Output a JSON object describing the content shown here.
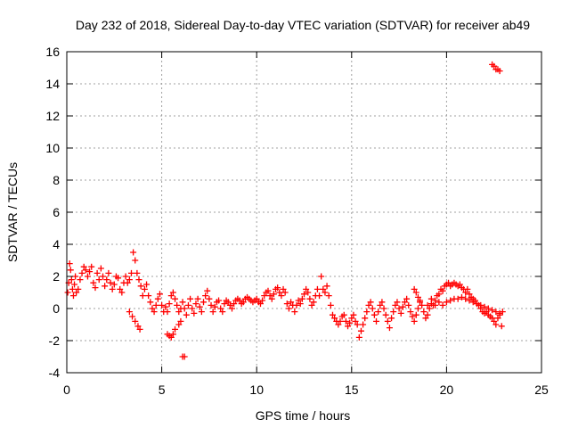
{
  "chart_data": {
    "type": "scatter",
    "title": "Day 232 of 2018, Sidereal Day-to-day VTEC variation (SDTVAR) for receiver ab49",
    "xlabel": "GPS time / hours",
    "ylabel": "SDTVAR / TECUs",
    "xlim": [
      0,
      25
    ],
    "ylim": [
      -4,
      16
    ],
    "xticks": [
      "0",
      "5",
      "10",
      "15",
      "20",
      "25"
    ],
    "yticks": [
      "-4",
      "-2",
      "0",
      "2",
      "4",
      "6",
      "8",
      "10",
      "12",
      "14",
      "16"
    ],
    "grid": true,
    "marker": "+",
    "color": "#ff0000",
    "series": [
      {
        "name": "SDTVAR",
        "points": [
          [
            0.05,
            1.0
          ],
          [
            0.1,
            1.6
          ],
          [
            0.15,
            2.8
          ],
          [
            0.2,
            2.4
          ],
          [
            0.25,
            1.8
          ],
          [
            0.3,
            1.2
          ],
          [
            0.35,
            0.8
          ],
          [
            0.4,
            1.5
          ],
          [
            0.45,
            2.0
          ],
          [
            0.5,
            1.0
          ],
          [
            0.6,
            1.2
          ],
          [
            0.7,
            1.8
          ],
          [
            0.8,
            2.2
          ],
          [
            0.9,
            2.6
          ],
          [
            1.0,
            2.4
          ],
          [
            1.1,
            2.0
          ],
          [
            1.2,
            2.3
          ],
          [
            1.3,
            2.6
          ],
          [
            1.4,
            1.6
          ],
          [
            1.5,
            1.3
          ],
          [
            1.6,
            2.2
          ],
          [
            1.7,
            1.8
          ],
          [
            1.8,
            2.5
          ],
          [
            1.9,
            2.0
          ],
          [
            2.0,
            1.4
          ],
          [
            2.1,
            1.8
          ],
          [
            2.2,
            2.2
          ],
          [
            2.3,
            1.6
          ],
          [
            2.4,
            1.2
          ],
          [
            2.5,
            1.5
          ],
          [
            2.6,
            2.0
          ],
          [
            2.7,
            1.9
          ],
          [
            2.8,
            1.2
          ],
          [
            2.9,
            1.0
          ],
          [
            3.0,
            1.6
          ],
          [
            3.1,
            2.0
          ],
          [
            3.2,
            1.6
          ],
          [
            3.3,
            1.8
          ],
          [
            3.4,
            2.2
          ],
          [
            3.5,
            3.5
          ],
          [
            3.6,
            3.0
          ],
          [
            3.7,
            2.2
          ],
          [
            3.8,
            1.8
          ],
          [
            3.9,
            1.4
          ],
          [
            4.0,
            0.8
          ],
          [
            4.1,
            1.2
          ],
          [
            4.2,
            1.5
          ],
          [
            4.3,
            0.8
          ],
          [
            4.4,
            0.4
          ],
          [
            4.5,
            0.0
          ],
          [
            4.6,
            -0.2
          ],
          [
            4.7,
            0.2
          ],
          [
            4.8,
            0.6
          ],
          [
            4.9,
            0.9
          ],
          [
            5.0,
            0.2
          ],
          [
            5.1,
            -0.2
          ],
          [
            3.3,
            -0.2
          ],
          [
            3.45,
            -0.5
          ],
          [
            3.6,
            -0.8
          ],
          [
            3.75,
            -1.1
          ],
          [
            3.85,
            -1.3
          ],
          [
            5.2,
            0.1
          ],
          [
            5.3,
            -0.2
          ],
          [
            5.4,
            0.3
          ],
          [
            5.5,
            0.8
          ],
          [
            5.6,
            1.0
          ],
          [
            5.7,
            0.6
          ],
          [
            5.8,
            0.2
          ],
          [
            5.9,
            -0.2
          ],
          [
            6.0,
            0.0
          ],
          [
            6.1,
            0.4
          ],
          [
            6.2,
            0.0
          ],
          [
            6.3,
            -0.4
          ],
          [
            6.4,
            0.2
          ],
          [
            6.5,
            0.6
          ],
          [
            6.6,
            0.0
          ],
          [
            6.7,
            -0.3
          ],
          [
            6.8,
            0.3
          ],
          [
            6.9,
            0.6
          ],
          [
            7.0,
            0.1
          ],
          [
            7.1,
            -0.2
          ],
          [
            7.2,
            0.4
          ],
          [
            7.3,
            0.8
          ],
          [
            7.4,
            1.1
          ],
          [
            7.5,
            0.6
          ],
          [
            7.6,
            0.2
          ],
          [
            7.7,
            -0.2
          ],
          [
            7.8,
            0.1
          ],
          [
            7.9,
            0.4
          ],
          [
            8.0,
            0.5
          ],
          [
            8.1,
            0.0
          ],
          [
            8.2,
            -0.2
          ],
          [
            8.3,
            0.3
          ],
          [
            8.4,
            0.5
          ],
          [
            8.5,
            0.4
          ],
          [
            8.6,
            0.2
          ],
          [
            8.7,
            0.0
          ],
          [
            8.8,
            0.3
          ],
          [
            8.9,
            0.5
          ],
          [
            9.0,
            0.6
          ],
          [
            9.1,
            0.5
          ],
          [
            9.2,
            0.3
          ],
          [
            9.3,
            0.4
          ],
          [
            9.4,
            0.6
          ],
          [
            9.5,
            0.7
          ],
          [
            9.6,
            0.6
          ],
          [
            9.7,
            0.5
          ],
          [
            9.8,
            0.4
          ],
          [
            9.9,
            0.5
          ],
          [
            10.0,
            0.6
          ],
          [
            10.1,
            0.4
          ],
          [
            10.2,
            0.3
          ],
          [
            10.3,
            0.5
          ],
          [
            10.4,
            0.8
          ],
          [
            10.5,
            1.0
          ],
          [
            10.6,
            1.1
          ],
          [
            10.7,
            0.8
          ],
          [
            10.8,
            0.6
          ],
          [
            10.9,
            0.9
          ],
          [
            11.0,
            1.2
          ],
          [
            11.1,
            1.3
          ],
          [
            11.2,
            1.0
          ],
          [
            11.3,
            0.8
          ],
          [
            11.4,
            1.2
          ],
          [
            11.5,
            1.0
          ],
          [
            11.6,
            0.3
          ],
          [
            11.7,
            0.0
          ],
          [
            11.8,
            0.4
          ],
          [
            11.9,
            0.2
          ],
          [
            12.0,
            -0.2
          ],
          [
            12.1,
            0.2
          ],
          [
            12.2,
            0.5
          ],
          [
            12.3,
            0.3
          ],
          [
            12.4,
            0.6
          ],
          [
            12.5,
            0.9
          ],
          [
            12.6,
            1.2
          ],
          [
            12.7,
            1.0
          ],
          [
            12.8,
            0.6
          ],
          [
            12.9,
            0.2
          ],
          [
            13.0,
            0.4
          ],
          [
            13.1,
            0.8
          ],
          [
            13.2,
            1.2
          ],
          [
            13.3,
            0.8
          ],
          [
            13.4,
            2.0
          ],
          [
            13.5,
            1.2
          ],
          [
            13.6,
            1.0
          ],
          [
            13.7,
            1.4
          ],
          [
            13.8,
            0.8
          ],
          [
            13.9,
            0.2
          ],
          [
            14.0,
            -0.4
          ],
          [
            14.1,
            -0.6
          ],
          [
            14.2,
            -0.8
          ],
          [
            14.3,
            -1.0
          ],
          [
            14.4,
            -0.8
          ],
          [
            14.5,
            -0.5
          ],
          [
            14.6,
            -0.4
          ],
          [
            14.7,
            -0.8
          ],
          [
            14.8,
            -1.1
          ],
          [
            14.9,
            -0.9
          ],
          [
            15.0,
            -0.6
          ],
          [
            15.1,
            -0.4
          ],
          [
            15.2,
            -0.8
          ],
          [
            15.3,
            -1.0
          ],
          [
            15.4,
            -1.8
          ],
          [
            15.5,
            -1.4
          ],
          [
            15.6,
            -1.0
          ],
          [
            15.7,
            -0.6
          ],
          [
            15.8,
            -0.2
          ],
          [
            15.9,
            0.2
          ],
          [
            16.0,
            0.4
          ],
          [
            16.1,
            0.0
          ],
          [
            16.2,
            -0.4
          ],
          [
            16.3,
            -0.8
          ],
          [
            16.4,
            -0.2
          ],
          [
            16.5,
            0.2
          ],
          [
            16.6,
            0.4
          ],
          [
            16.7,
            0.0
          ],
          [
            16.8,
            -0.4
          ],
          [
            16.9,
            -0.8
          ],
          [
            17.0,
            -1.2
          ],
          [
            17.1,
            -0.6
          ],
          [
            17.2,
            -0.2
          ],
          [
            17.3,
            0.2
          ],
          [
            17.4,
            0.4
          ],
          [
            17.5,
            0.0
          ],
          [
            17.6,
            -0.3
          ],
          [
            17.7,
            0.1
          ],
          [
            17.8,
            0.4
          ],
          [
            17.9,
            0.6
          ],
          [
            18.0,
            0.2
          ],
          [
            18.1,
            -0.2
          ],
          [
            18.2,
            -0.5
          ],
          [
            18.3,
            -0.8
          ],
          [
            18.4,
            -0.4
          ],
          [
            18.5,
            0.0
          ],
          [
            18.6,
            0.4
          ],
          [
            18.7,
            0.2
          ],
          [
            18.8,
            -0.2
          ],
          [
            18.9,
            -0.6
          ],
          [
            19.0,
            -0.4
          ],
          [
            19.1,
            0.0
          ],
          [
            19.2,
            0.3
          ],
          [
            19.3,
            0.2
          ],
          [
            19.4,
            0.5
          ],
          [
            19.5,
            0.8
          ],
          [
            19.6,
            0.9
          ],
          [
            19.7,
            1.2
          ],
          [
            19.8,
            1.1
          ],
          [
            19.9,
            1.4
          ],
          [
            20.0,
            1.5
          ],
          [
            20.1,
            1.6
          ],
          [
            20.2,
            1.4
          ],
          [
            20.3,
            1.5
          ],
          [
            20.4,
            1.6
          ],
          [
            20.5,
            1.5
          ],
          [
            20.6,
            1.4
          ],
          [
            20.7,
            1.5
          ],
          [
            20.8,
            1.3
          ],
          [
            20.9,
            1.2
          ],
          [
            21.0,
            1.0
          ],
          [
            21.1,
            1.2
          ],
          [
            21.2,
            0.9
          ],
          [
            21.3,
            0.7
          ],
          [
            21.4,
            0.6
          ],
          [
            21.5,
            0.5
          ],
          [
            21.6,
            0.3
          ],
          [
            21.7,
            0.2
          ],
          [
            21.8,
            0.0
          ],
          [
            21.9,
            -0.2
          ],
          [
            22.0,
            -0.3
          ],
          [
            22.1,
            -0.2
          ],
          [
            22.2,
            -0.4
          ],
          [
            22.3,
            -0.5
          ],
          [
            22.4,
            -0.6
          ],
          [
            22.5,
            -0.8
          ],
          [
            22.6,
            -1.0
          ],
          [
            22.7,
            -0.6
          ],
          [
            22.8,
            -0.4
          ],
          [
            22.9,
            -1.1
          ],
          [
            22.95,
            -0.2
          ],
          [
            19.0,
            0.2
          ],
          [
            19.2,
            0.6
          ],
          [
            19.4,
            0.2
          ],
          [
            19.6,
            0.4
          ],
          [
            19.8,
            0.2
          ],
          [
            20.0,
            0.4
          ],
          [
            20.2,
            0.5
          ],
          [
            20.4,
            0.6
          ],
          [
            20.6,
            0.6
          ],
          [
            20.8,
            0.7
          ],
          [
            21.0,
            0.6
          ],
          [
            21.2,
            0.5
          ],
          [
            21.4,
            0.4
          ],
          [
            21.6,
            0.3
          ],
          [
            21.8,
            0.2
          ],
          [
            22.0,
            0.1
          ],
          [
            22.2,
            0.0
          ],
          [
            22.4,
            -0.1
          ],
          [
            22.6,
            -0.2
          ],
          [
            22.8,
            -0.3
          ],
          [
            18.3,
            1.2
          ],
          [
            18.4,
            1.0
          ],
          [
            18.5,
            0.7
          ],
          [
            18.6,
            0.5
          ],
          [
            5.7,
            -1.3
          ],
          [
            5.6,
            -1.6
          ],
          [
            5.5,
            -1.8
          ],
          [
            5.4,
            -1.7
          ],
          [
            5.3,
            -1.6
          ],
          [
            5.9,
            -1.0
          ],
          [
            6.0,
            -0.8
          ],
          [
            6.1,
            -3.0
          ],
          [
            6.2,
            -3.0
          ],
          [
            22.4,
            15.2
          ],
          [
            22.5,
            15.1
          ],
          [
            22.6,
            14.9
          ],
          [
            22.7,
            14.9
          ],
          [
            22.8,
            14.8
          ]
        ]
      }
    ]
  }
}
